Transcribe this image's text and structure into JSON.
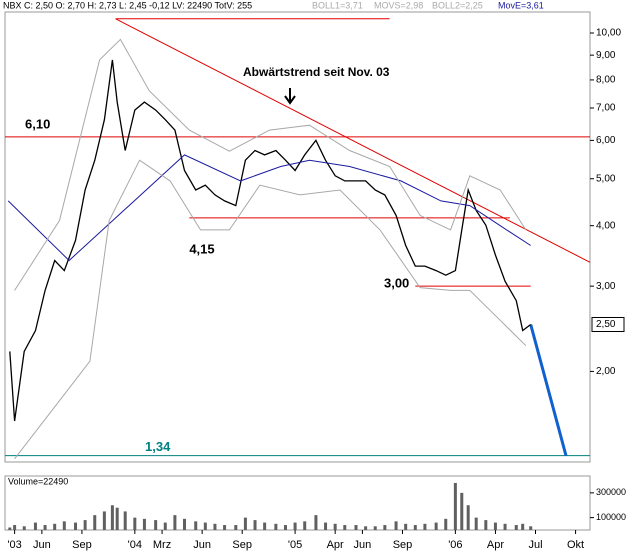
{
  "header": [
    "NBX C: 2,50 O: 2,70 H: 2,73 L: 2,45 -0,12 LV: 22490 TotV: 255",
    "BOLL1=3,71",
    "MOVS=2,98",
    "BOLL2=2,25",
    "MovE=3,61"
  ],
  "chart_data": {
    "type": "line",
    "log_scale": true,
    "annotation": "Abwärtstrend seit Nov. 03",
    "xlim": [
      2003.19,
      2006.84
    ],
    "xticks": [
      {
        "value": 2003.25,
        "label": "'03"
      },
      {
        "value": 2003.42,
        "label": "Jun"
      },
      {
        "value": 2003.67,
        "label": "Sep"
      },
      {
        "value": 2004.0,
        "label": "'04"
      },
      {
        "value": 2004.17,
        "label": "Mrz"
      },
      {
        "value": 2004.42,
        "label": "Jun"
      },
      {
        "value": 2004.67,
        "label": "Sep"
      },
      {
        "value": 2005.0,
        "label": "'05"
      },
      {
        "value": 2005.25,
        "label": "Apr"
      },
      {
        "value": 2005.42,
        "label": "Jun"
      },
      {
        "value": 2005.67,
        "label": "Sep"
      },
      {
        "value": 2006.0,
        "label": "'06"
      },
      {
        "value": 2006.25,
        "label": "Apr"
      },
      {
        "value": 2006.5,
        "label": "Jul"
      },
      {
        "value": 2006.75,
        "label": "Okt"
      }
    ],
    "ylim": [
      1.3,
      11.05
    ],
    "yticks": [
      {
        "value": 10,
        "label": "10,00"
      },
      {
        "value": 9,
        "label": "9,00"
      },
      {
        "value": 8,
        "label": "8,00"
      },
      {
        "value": 7,
        "label": "7,00"
      },
      {
        "value": 6,
        "label": "6,00"
      },
      {
        "value": 5,
        "label": "5,00"
      },
      {
        "value": 4,
        "label": "4,00"
      },
      {
        "value": 3,
        "label": "3,00"
      },
      {
        "value": 2,
        "label": "2,00"
      }
    ],
    "last_price": {
      "value": 2.5,
      "label": "2,50"
    },
    "series": [
      {
        "color": "#000000",
        "x": [
          2003.22,
          2003.25,
          2003.31,
          2003.38,
          2003.44,
          2003.5,
          2003.56,
          2003.63,
          2003.69,
          2003.75,
          2003.81,
          2003.86,
          2003.89,
          2003.94,
          2004.0,
          2004.06,
          2004.13,
          2004.19,
          2004.25,
          2004.31,
          2004.38,
          2004.44,
          2004.5,
          2004.56,
          2004.63,
          2004.69,
          2004.75,
          2004.81,
          2004.88,
          2004.94,
          2005.0,
          2005.06,
          2005.13,
          2005.19,
          2005.25,
          2005.31,
          2005.38,
          2005.44,
          2005.5,
          2005.56,
          2005.63,
          2005.69,
          2005.75,
          2005.81,
          2005.88,
          2005.94,
          2006.0,
          2006.04,
          2006.08,
          2006.13,
          2006.19,
          2006.25,
          2006.31,
          2006.38,
          2006.42,
          2006.47
        ],
        "values": [
          2.2,
          1.58,
          2.2,
          2.43,
          2.94,
          3.39,
          3.23,
          3.73,
          4.74,
          5.46,
          6.62,
          8.8,
          7.2,
          5.72,
          6.93,
          7.2,
          6.93,
          6.62,
          6.3,
          5.2,
          4.74,
          4.85,
          4.63,
          4.5,
          4.4,
          5.46,
          5.72,
          5.6,
          5.72,
          5.46,
          5.2,
          5.6,
          6.0,
          5.46,
          5.07,
          4.95,
          4.95,
          4.95,
          4.74,
          4.63,
          4.2,
          3.64,
          3.3,
          3.3,
          3.23,
          3.16,
          3.23,
          3.92,
          4.74,
          4.3,
          4.01,
          3.48,
          3.07,
          2.8,
          2.43,
          2.5
        ]
      },
      {
        "color": "#1a1aa0",
        "x": [
          2003.21,
          2003.59,
          2004.31,
          2004.66,
          2004.91,
          2005.09,
          2005.34,
          2005.66,
          2005.91,
          2006.09,
          2006.28,
          2006.47
        ],
        "values": [
          4.5,
          3.39,
          5.6,
          4.95,
          5.3,
          5.46,
          5.3,
          4.95,
          4.5,
          4.4,
          4.0,
          3.64
        ]
      },
      {
        "color": "#a8a8a8",
        "x": [
          2003.25,
          2003.53,
          2003.78,
          2003.91,
          2004.09,
          2004.34,
          2004.59,
          2004.84,
          2005.09,
          2005.34,
          2005.59,
          2005.78,
          2005.97,
          2006.09,
          2006.28,
          2006.44
        ],
        "values": [
          2.94,
          4.1,
          8.8,
          9.7,
          7.6,
          6.3,
          5.7,
          6.3,
          6.45,
          5.72,
          5.3,
          4.2,
          3.92,
          5.07,
          4.74,
          3.92
        ]
      },
      {
        "color": "#a8a8a8",
        "x": [
          2003.25,
          2003.53,
          2003.72,
          2003.84,
          2004.03,
          2004.22,
          2004.41,
          2004.59,
          2004.78,
          2005.03,
          2005.28,
          2005.53,
          2005.78,
          2005.97,
          2006.09,
          2006.28,
          2006.44
        ],
        "values": [
          1.32,
          1.74,
          2.1,
          4.1,
          5.46,
          4.95,
          3.92,
          3.92,
          4.85,
          4.63,
          4.74,
          3.92,
          2.98,
          2.94,
          2.94,
          2.55,
          2.26
        ]
      }
    ],
    "levels": [
      {
        "value": 6.1,
        "label": "6,10",
        "color": "#e00000",
        "x": [
          2003.19,
          2006.84
        ]
      },
      {
        "value": 4.15,
        "label": "4,15",
        "color": "#e00000",
        "x": [
          2004.34,
          2006.34
        ]
      },
      {
        "value": 3.0,
        "label": "3,00",
        "color": "#e00000",
        "x": [
          2005.75,
          2006.47
        ]
      },
      {
        "value": 1.34,
        "label": "1,34",
        "color": "#008080",
        "x": [
          2003.19,
          2006.84
        ]
      },
      {
        "value": 10.7,
        "color": "#e00000",
        "x": [
          2003.88,
          2005.59
        ]
      }
    ],
    "lines": [
      {
        "color": "#e00000",
        "x": [
          2003.88,
          2006.84
        ],
        "values": [
          10.7,
          3.36
        ]
      },
      {
        "color": "#1060d0",
        "x": [
          2006.47,
          2006.69
        ],
        "values": [
          2.5,
          1.34
        ]
      }
    ],
    "volume": {
      "label": "Volume=22490",
      "color": "#606060",
      "ylim": [
        0,
        420000
      ],
      "yticks": [
        300000,
        100000
      ],
      "values": [
        20000,
        40000,
        30000,
        60000,
        40000,
        50000,
        70000,
        60000,
        80000,
        120000,
        150000,
        200000,
        180000,
        150000,
        100000,
        90000,
        80000,
        60000,
        120000,
        90000,
        70000,
        60000,
        50000,
        40000,
        40000,
        100000,
        80000,
        60000,
        50000,
        40000,
        60000,
        70000,
        120000,
        60000,
        50000,
        40000,
        40000,
        30000,
        30000,
        40000,
        70000,
        50000,
        40000,
        50000,
        60000,
        90000,
        380000,
        300000,
        200000,
        100000,
        80000,
        60000,
        50000,
        40000,
        50000,
        30000
      ]
    }
  }
}
